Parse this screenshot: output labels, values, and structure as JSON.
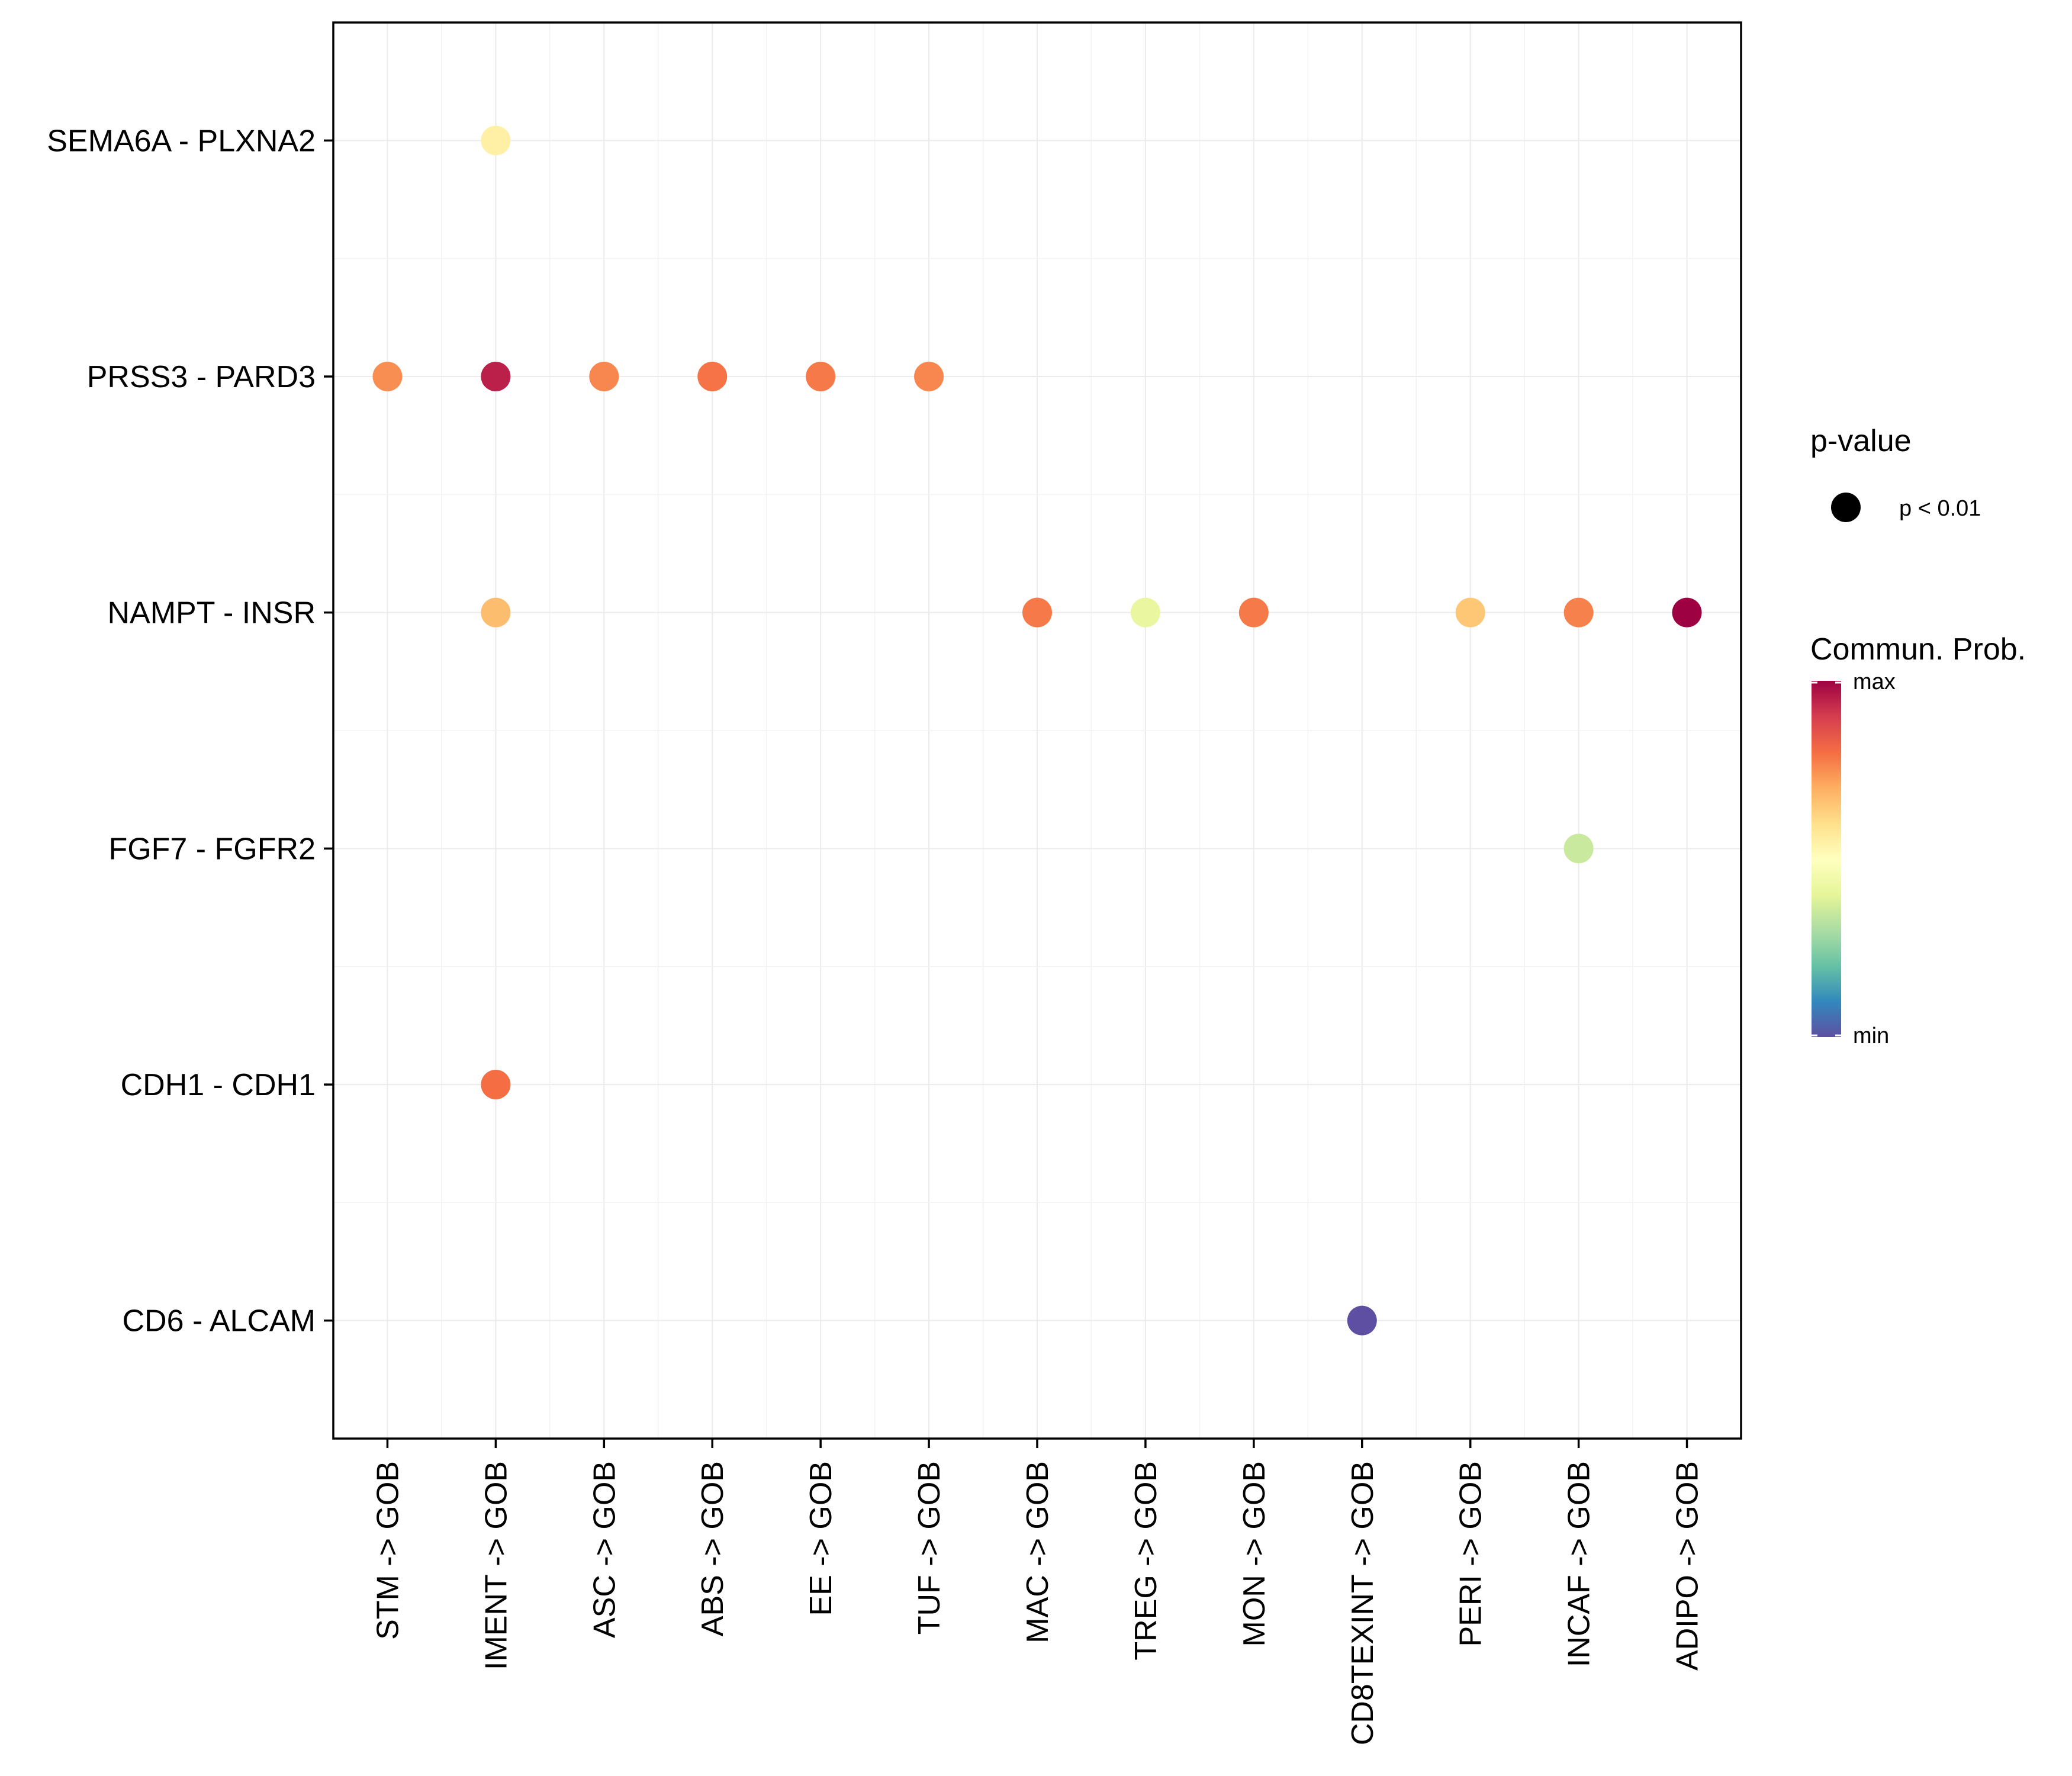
{
  "chart_data": {
    "type": "scatter",
    "title": "",
    "xlabel": "",
    "ylabel": "",
    "categories": [
      "STM -> GOB",
      "IMENT -> GOB",
      "ASC -> GOB",
      "ABS -> GOB",
      "EE -> GOB",
      "TUF -> GOB",
      "MAC -> GOB",
      "TREG -> GOB",
      "MON -> GOB",
      "CD8TEXINT -> GOB",
      "PERI -> GOB",
      "INCAF -> GOB",
      "ADIPO -> GOB"
    ],
    "rows": [
      "SEMA6A - PLXNA2",
      "PRSS3 - PARD3",
      "NAMPT - INSR",
      "FGF7 - FGFR2",
      "CDH1 - CDH1",
      "CD6 - ALCAM"
    ],
    "grid": true,
    "points": [
      {
        "x": "IMENT -> GOB",
        "y": "SEMA6A - PLXNA2",
        "prob": 0.55
      },
      {
        "x": "STM -> GOB",
        "y": "PRSS3 - PARD3",
        "prob": 0.75
      },
      {
        "x": "IMENT -> GOB",
        "y": "PRSS3 - PARD3",
        "prob": 0.95
      },
      {
        "x": "ASC -> GOB",
        "y": "PRSS3 - PARD3",
        "prob": 0.76
      },
      {
        "x": "ABS -> GOB",
        "y": "PRSS3 - PARD3",
        "prob": 0.79
      },
      {
        "x": "EE -> GOB",
        "y": "PRSS3 - PARD3",
        "prob": 0.78
      },
      {
        "x": "TUF -> GOB",
        "y": "PRSS3 - PARD3",
        "prob": 0.76
      },
      {
        "x": "IMENT -> GOB",
        "y": "NAMPT - INSR",
        "prob": 0.67
      },
      {
        "x": "MAC -> GOB",
        "y": "NAMPT - INSR",
        "prob": 0.78
      },
      {
        "x": "TREG -> GOB",
        "y": "NAMPT - INSR",
        "prob": 0.42
      },
      {
        "x": "MON -> GOB",
        "y": "NAMPT - INSR",
        "prob": 0.78
      },
      {
        "x": "PERI -> GOB",
        "y": "NAMPT - INSR",
        "prob": 0.65
      },
      {
        "x": "INCAF -> GOB",
        "y": "NAMPT - INSR",
        "prob": 0.77
      },
      {
        "x": "ADIPO -> GOB",
        "y": "NAMPT - INSR",
        "prob": 1.0
      },
      {
        "x": "INCAF -> GOB",
        "y": "FGF7 - FGFR2",
        "prob": 0.35
      },
      {
        "x": "IMENT -> GOB",
        "y": "CDH1 - CDH1",
        "prob": 0.8
      },
      {
        "x": "CD8TEXINT -> GOB",
        "y": "CD6 - ALCAM",
        "prob": 0.0
      }
    ],
    "legend": {
      "pvalue_title": "p-value",
      "pvalue_label": "p < 0.01",
      "color_title": "Commun. Prob.",
      "color_max": "max",
      "color_min": "min",
      "position": "right"
    },
    "colorscale": [
      "#5E4FA2",
      "#3288BD",
      "#66C2A5",
      "#ABDDA4",
      "#E6F598",
      "#FFFFBF",
      "#FEE08B",
      "#FDAE61",
      "#F46D43",
      "#D53E4F",
      "#9E0142"
    ]
  }
}
